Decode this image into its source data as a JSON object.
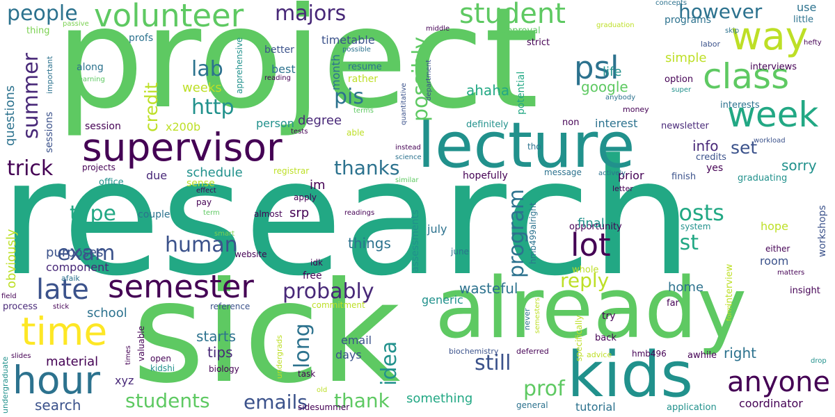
{
  "words": [
    {
      "text": "research",
      "size": 230,
      "color": "#22a884"
    },
    {
      "text": "project",
      "size": 200,
      "color": "#5ec962"
    },
    {
      "text": "sick",
      "size": 200,
      "color": "#5ec962"
    },
    {
      "text": "already",
      "size": 120,
      "color": "#5ec962"
    },
    {
      "text": "lecture",
      "size": 90,
      "color": "#21918c"
    },
    {
      "text": "kids",
      "size": 90,
      "color": "#21918c"
    },
    {
      "text": "time",
      "size": 55,
      "color": "#fde725"
    },
    {
      "text": "hour",
      "size": 55,
      "color": "#2c728e"
    },
    {
      "text": "supervisor",
      "size": 55,
      "color": "#440154"
    },
    {
      "text": "semester",
      "size": 55,
      "color": "#440154"
    },
    {
      "text": "way",
      "size": 55,
      "color": "#bddf26"
    },
    {
      "text": "week",
      "size": 50,
      "color": "#22a884"
    },
    {
      "text": "class",
      "size": 50,
      "color": "#5ec962"
    },
    {
      "text": "volunteer",
      "size": 45,
      "color": "#5ec962"
    },
    {
      "text": "student",
      "size": 40,
      "color": "#5ec962"
    },
    {
      "text": "psl",
      "size": 45,
      "color": "#2c728e"
    },
    {
      "text": "lot",
      "size": 45,
      "color": "#440154"
    },
    {
      "text": "anyone",
      "size": 40,
      "color": "#440154"
    },
    {
      "text": "late",
      "size": 40,
      "color": "#3b528b"
    },
    {
      "text": "people",
      "size": 30,
      "color": "#2c728e"
    },
    {
      "text": "majors",
      "size": 30,
      "color": "#482878"
    },
    {
      "text": "summer",
      "size": 30,
      "color": "#482878"
    },
    {
      "text": "lab",
      "size": 30,
      "color": "#2c728e"
    },
    {
      "text": "http",
      "size": 30,
      "color": "#21918c"
    },
    {
      "text": "pis",
      "size": 30,
      "color": "#2c728e"
    },
    {
      "text": "possibly",
      "size": 30,
      "color": "#5ec962"
    },
    {
      "text": "however",
      "size": 28,
      "color": "#2c728e"
    },
    {
      "text": "posts",
      "size": 32,
      "color": "#22a884"
    },
    {
      "text": "list",
      "size": 30,
      "color": "#22a884"
    },
    {
      "text": "trick",
      "size": 30,
      "color": "#440154"
    },
    {
      "text": "exam",
      "size": 30,
      "color": "#3b528b"
    },
    {
      "text": "human",
      "size": 30,
      "color": "#3b528b"
    },
    {
      "text": "type",
      "size": 30,
      "color": "#22a884"
    },
    {
      "text": "probably",
      "size": 30,
      "color": "#482878"
    },
    {
      "text": "thanks",
      "size": 28,
      "color": "#2c728e"
    },
    {
      "text": "still",
      "size": 30,
      "color": "#3b528b"
    },
    {
      "text": "long",
      "size": 30,
      "color": "#2c728e"
    },
    {
      "text": "idea",
      "size": 30,
      "color": "#21918c"
    },
    {
      "text": "reply",
      "size": 28,
      "color": "#bddf26"
    },
    {
      "text": "program",
      "size": 30,
      "color": "#2c728e"
    },
    {
      "text": "prof",
      "size": 30,
      "color": "#5ec962"
    },
    {
      "text": "emails",
      "size": 28,
      "color": "#3b528b"
    },
    {
      "text": "students",
      "size": 28,
      "color": "#5ec962"
    },
    {
      "text": "thank",
      "size": 28,
      "color": "#5ec962"
    },
    {
      "text": "credit",
      "size": 25,
      "color": "#bddf26"
    },
    {
      "text": "set",
      "size": 25,
      "color": "#3b528b"
    },
    {
      "text": "info",
      "size": 20,
      "color": "#482878"
    },
    {
      "text": "sorry",
      "size": 20,
      "color": "#21918c"
    },
    {
      "text": "questions",
      "size": 18,
      "color": "#2c728e"
    },
    {
      "text": "sessions",
      "size": 14,
      "color": "#3b528b"
    },
    {
      "text": "important",
      "size": 11,
      "color": "#2c728e"
    },
    {
      "text": "thing",
      "size": 13,
      "color": "#7ad151"
    },
    {
      "text": "passive",
      "size": 10,
      "color": "#7ad151"
    },
    {
      "text": "profs",
      "size": 14,
      "color": "#2c728e"
    },
    {
      "text": "along",
      "size": 14,
      "color": "#2c728e"
    },
    {
      "text": "learning",
      "size": 10,
      "color": "#5ec962"
    },
    {
      "text": "apprehensive",
      "size": 12,
      "color": "#21918c"
    },
    {
      "text": "better",
      "size": 14,
      "color": "#3b528b"
    },
    {
      "text": "timetable",
      "size": 16,
      "color": "#3b528b"
    },
    {
      "text": "resume",
      "size": 13,
      "color": "#2c728e"
    },
    {
      "text": "rather",
      "size": 14,
      "color": "#bddf26"
    },
    {
      "text": "possible",
      "size": 10,
      "color": "#2c728e"
    },
    {
      "text": "reading",
      "size": 10,
      "color": "#440154"
    },
    {
      "text": "best",
      "size": 16,
      "color": "#2c728e"
    },
    {
      "text": "weeks",
      "size": 18,
      "color": "#bddf26"
    },
    {
      "text": "month",
      "size": 16,
      "color": "#2c728e"
    },
    {
      "text": "life",
      "size": 18,
      "color": "#21918c"
    },
    {
      "text": "middle",
      "size": 10,
      "color": "#440154"
    },
    {
      "text": "department",
      "size": 10,
      "color": "#3b528b"
    },
    {
      "text": "quantitative",
      "size": 10,
      "color": "#3b528b"
    },
    {
      "text": "ahaha",
      "size": 20,
      "color": "#22a884"
    },
    {
      "text": "approval",
      "size": 13,
      "color": "#5ec962"
    },
    {
      "text": "strict",
      "size": 13,
      "color": "#440154"
    },
    {
      "text": "potential",
      "size": 14,
      "color": "#22a884"
    },
    {
      "text": "concepts",
      "size": 10,
      "color": "#2c728e"
    },
    {
      "text": "graduation",
      "size": 10,
      "color": "#bddf26"
    },
    {
      "text": "programs",
      "size": 14,
      "color": "#2c728e"
    },
    {
      "text": "labor",
      "size": 11,
      "color": "#3b528b"
    },
    {
      "text": "skip",
      "size": 10,
      "color": "#2c728e"
    },
    {
      "text": "hefty",
      "size": 10,
      "color": "#440154"
    },
    {
      "text": "use",
      "size": 16,
      "color": "#2c728e"
    },
    {
      "text": "little",
      "size": 13,
      "color": "#2c728e"
    },
    {
      "text": "simple",
      "size": 18,
      "color": "#bddf26"
    },
    {
      "text": "google",
      "size": 20,
      "color": "#5ec962"
    },
    {
      "text": "interviews",
      "size": 13,
      "color": "#440154"
    },
    {
      "text": "option",
      "size": 13,
      "color": "#440154"
    },
    {
      "text": "super",
      "size": 10,
      "color": "#21918c"
    },
    {
      "text": "anybody",
      "size": 10,
      "color": "#2c728e"
    },
    {
      "text": "money",
      "size": 11,
      "color": "#440154"
    },
    {
      "text": "interests",
      "size": 13,
      "color": "#2c728e"
    },
    {
      "text": "newsletter",
      "size": 13,
      "color": "#482878"
    },
    {
      "text": "non",
      "size": 13,
      "color": "#440154"
    },
    {
      "text": "definitely",
      "size": 13,
      "color": "#21918c"
    },
    {
      "text": "interest",
      "size": 16,
      "color": "#2c728e"
    },
    {
      "text": "degree",
      "size": 18,
      "color": "#482878"
    },
    {
      "text": "person",
      "size": 16,
      "color": "#21918c"
    },
    {
      "text": "tests",
      "size": 10,
      "color": "#440154"
    },
    {
      "text": "terms",
      "size": 10,
      "color": "#5ec962"
    },
    {
      "text": "able",
      "size": 12,
      "color": "#bddf26"
    },
    {
      "text": "session",
      "size": 14,
      "color": "#440154"
    },
    {
      "text": "x200b",
      "size": 16,
      "color": "#bddf26"
    },
    {
      "text": "workload",
      "size": 10,
      "color": "#3b528b"
    },
    {
      "text": "credits",
      "size": 13,
      "color": "#3b528b"
    },
    {
      "text": "yes",
      "size": 14,
      "color": "#440154"
    },
    {
      "text": "workshops",
      "size": 14,
      "color": "#3b528b"
    },
    {
      "text": "schedule",
      "size": 18,
      "color": "#21918c"
    },
    {
      "text": "due",
      "size": 16,
      "color": "#482878"
    },
    {
      "text": "im",
      "size": 18,
      "color": "#440154"
    },
    {
      "text": "prior",
      "size": 16,
      "color": "#440154"
    },
    {
      "text": "tho",
      "size": 12,
      "color": "#2c728e"
    },
    {
      "text": "instead",
      "size": 10,
      "color": "#440154"
    },
    {
      "text": "science",
      "size": 10,
      "color": "#2c728e"
    },
    {
      "text": "message",
      "size": 12,
      "color": "#2c728e"
    },
    {
      "text": "actively",
      "size": 10,
      "color": "#2c728e"
    },
    {
      "text": "hopefully",
      "size": 14,
      "color": "#440154"
    },
    {
      "text": "similar",
      "size": 10,
      "color": "#5ec962"
    },
    {
      "text": "registrar",
      "size": 12,
      "color": "#bddf26"
    },
    {
      "text": "sense",
      "size": 14,
      "color": "#bddf26"
    },
    {
      "text": "finish",
      "size": 13,
      "color": "#3b528b"
    },
    {
      "text": "graduating",
      "size": 13,
      "color": "#21918c"
    },
    {
      "text": "letter",
      "size": 11,
      "color": "#440154"
    },
    {
      "text": "effect",
      "size": 10,
      "color": "#440154"
    },
    {
      "text": "apply",
      "size": 12,
      "color": "#440154"
    },
    {
      "text": "pay",
      "size": 12,
      "color": "#440154"
    },
    {
      "text": "term",
      "size": 10,
      "color": "#5ec962"
    },
    {
      "text": "couple",
      "size": 14,
      "color": "#2c728e"
    },
    {
      "text": "almost",
      "size": 12,
      "color": "#440154"
    },
    {
      "text": "readings",
      "size": 10,
      "color": "#440154"
    },
    {
      "text": "srp",
      "size": 18,
      "color": "#440154"
    },
    {
      "text": "july",
      "size": 16,
      "color": "#2c728e"
    },
    {
      "text": "opportunity",
      "size": 13,
      "color": "#440154"
    },
    {
      "text": "system",
      "size": 12,
      "color": "#21918c"
    },
    {
      "text": "final",
      "size": 18,
      "color": "#21918c"
    },
    {
      "text": "hope",
      "size": 16,
      "color": "#bddf26"
    },
    {
      "text": "office",
      "size": 13,
      "color": "#21918c"
    },
    {
      "text": "projects",
      "size": 12,
      "color": "#440154"
    },
    {
      "text": "smart",
      "size": 10,
      "color": "#7ad151"
    },
    {
      "text": "website",
      "size": 12,
      "color": "#440154"
    },
    {
      "text": "june",
      "size": 12,
      "color": "#2c728e"
    },
    {
      "text": "idk",
      "size": 12,
      "color": "#440154"
    },
    {
      "text": "hmb499alright",
      "size": 12,
      "color": "#2c728e"
    },
    {
      "text": "things",
      "size": 20,
      "color": "#2c728e"
    },
    {
      "text": "assessments",
      "size": 14,
      "color": "#21918c"
    },
    {
      "text": "purposes",
      "size": 18,
      "color": "#3b528b"
    },
    {
      "text": "obviously",
      "size": 18,
      "color": "#bddf26"
    },
    {
      "text": "component",
      "size": 16,
      "color": "#482878"
    },
    {
      "text": "afaik",
      "size": 11,
      "color": "#2c728e"
    },
    {
      "text": "room",
      "size": 16,
      "color": "#3b528b"
    },
    {
      "text": "either",
      "size": 12,
      "color": "#440154"
    },
    {
      "text": "whole",
      "size": 13,
      "color": "#bddf26"
    },
    {
      "text": "interview",
      "size": 13,
      "color": "#bddf26"
    },
    {
      "text": "matters",
      "size": 10,
      "color": "#440154"
    },
    {
      "text": "home",
      "size": 18,
      "color": "#2c728e"
    },
    {
      "text": "far",
      "size": 13,
      "color": "#440154"
    },
    {
      "text": "insight",
      "size": 13,
      "color": "#440154"
    },
    {
      "text": "field",
      "size": 10,
      "color": "#440154"
    },
    {
      "text": "process",
      "size": 13,
      "color": "#482878"
    },
    {
      "text": "stick",
      "size": 10,
      "color": "#440154"
    },
    {
      "text": "reference",
      "size": 12,
      "color": "#3b528b"
    },
    {
      "text": "free",
      "size": 14,
      "color": "#440154"
    },
    {
      "text": "commitment",
      "size": 12,
      "color": "#bddf26"
    },
    {
      "text": "wasteful",
      "size": 20,
      "color": "#2c728e"
    },
    {
      "text": "generic",
      "size": 16,
      "color": "#21918c"
    },
    {
      "text": "school",
      "size": 18,
      "color": "#2c728e"
    },
    {
      "text": "starts",
      "size": 20,
      "color": "#2c728e"
    },
    {
      "text": "tips",
      "size": 20,
      "color": "#482878"
    },
    {
      "text": "material",
      "size": 18,
      "color": "#440154"
    },
    {
      "text": "email",
      "size": 16,
      "color": "#3b528b"
    },
    {
      "text": "days",
      "size": 16,
      "color": "#3b528b"
    },
    {
      "text": "never",
      "size": 11,
      "color": "#2c728e"
    },
    {
      "text": "specifically",
      "size": 12,
      "color": "#bddf26"
    },
    {
      "text": "semesters",
      "size": 10,
      "color": "#bddf26"
    },
    {
      "text": "try",
      "size": 14,
      "color": "#440154"
    },
    {
      "text": "form",
      "size": 10,
      "color": "#bddf26"
    },
    {
      "text": "back",
      "size": 13,
      "color": "#440154"
    },
    {
      "text": "right",
      "size": 20,
      "color": "#2c728e"
    },
    {
      "text": "undergraduate",
      "size": 11,
      "color": "#21918c"
    },
    {
      "text": "slides",
      "size": 10,
      "color": "#440154"
    },
    {
      "text": "times",
      "size": 10,
      "color": "#440154"
    },
    {
      "text": "valuable",
      "size": 12,
      "color": "#440154"
    },
    {
      "text": "open",
      "size": 12,
      "color": "#440154"
    },
    {
      "text": "kidshi",
      "size": 12,
      "color": "#21918c"
    },
    {
      "text": "biology",
      "size": 12,
      "color": "#440154"
    },
    {
      "text": "undergrads",
      "size": 11,
      "color": "#bddf26"
    },
    {
      "text": "task",
      "size": 12,
      "color": "#440154"
    },
    {
      "text": "biochemistry",
      "size": 11,
      "color": "#3b528b"
    },
    {
      "text": "deferred",
      "size": 11,
      "color": "#440154"
    },
    {
      "text": "advice",
      "size": 11,
      "color": "#bddf26"
    },
    {
      "text": "hmb496",
      "size": 12,
      "color": "#440154"
    },
    {
      "text": "awhile",
      "size": 13,
      "color": "#440154"
    },
    {
      "text": "drop",
      "size": 10,
      "color": "#21918c"
    },
    {
      "text": "xyz",
      "size": 16,
      "color": "#482878"
    },
    {
      "text": "search",
      "size": 20,
      "color": "#3b528b"
    },
    {
      "text": "old",
      "size": 10,
      "color": "#bddf26"
    },
    {
      "text": "sidesummer",
      "size": 12,
      "color": "#440154"
    },
    {
      "text": "something",
      "size": 18,
      "color": "#22a884"
    },
    {
      "text": "general",
      "size": 12,
      "color": "#2c728e"
    },
    {
      "text": "tutorial",
      "size": 16,
      "color": "#2c728e"
    },
    {
      "text": "application",
      "size": 13,
      "color": "#21918c"
    },
    {
      "text": "coordinator",
      "size": 16,
      "color": "#440154"
    }
  ]
}
